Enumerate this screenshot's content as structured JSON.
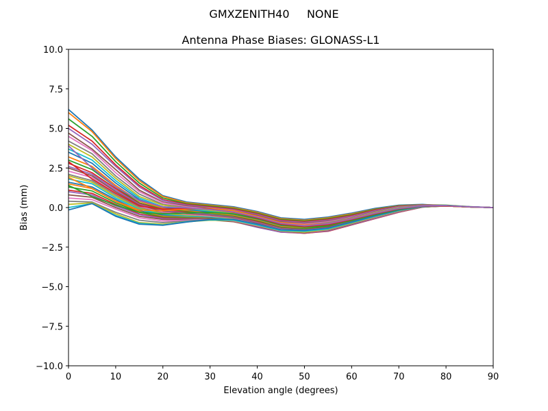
{
  "chart_data": {
    "type": "line",
    "suptitle": "GMXZENITH40     NONE",
    "title": "Antenna Phase Biases: GLONASS-L1",
    "xlabel": "Elevation angle (degrees)",
    "ylabel": "Bias (mm)",
    "xlim": [
      0,
      90
    ],
    "ylim": [
      -10,
      10
    ],
    "x_ticks": [
      0,
      10,
      20,
      30,
      40,
      50,
      60,
      70,
      80,
      90
    ],
    "y_ticks": [
      -10.0,
      -7.5,
      -5.0,
      -2.5,
      0.0,
      2.5,
      5.0,
      7.5,
      10.0
    ],
    "x_tick_labels": [
      "0",
      "10",
      "20",
      "30",
      "40",
      "50",
      "60",
      "70",
      "80",
      "90"
    ],
    "y_tick_labels": [
      "−10.0",
      "−7.5",
      "−5.0",
      "−2.5",
      "0.0",
      "2.5",
      "5.0",
      "7.5",
      "10.0"
    ],
    "grid": false,
    "legend": "none",
    "x": [
      0,
      5,
      10,
      15,
      20,
      25,
      30,
      35,
      40,
      45,
      50,
      55,
      60,
      65,
      70,
      75,
      80,
      85,
      90
    ],
    "series_colors": [
      "#1f77b4",
      "#ff7f0e",
      "#2ca02c",
      "#d62728",
      "#9467bd",
      "#8c564b",
      "#e377c2",
      "#7f7f7f",
      "#bcbd22",
      "#17becf"
    ],
    "series": [
      {
        "values": [
          6.2,
          4.9,
          3.2,
          1.8,
          0.75,
          0.35,
          0.2,
          0.05,
          -0.25,
          -0.65,
          -0.75,
          -0.6,
          -0.35,
          -0.05,
          0.15,
          0.2,
          0.1,
          0.05,
          0.0
        ]
      },
      {
        "values": [
          6.0,
          4.8,
          3.1,
          1.7,
          0.7,
          0.3,
          0.15,
          0.0,
          -0.3,
          -0.7,
          -0.8,
          -0.65,
          -0.4,
          -0.1,
          0.12,
          0.18,
          0.12,
          0.05,
          0.0
        ]
      },
      {
        "values": [
          5.6,
          4.5,
          2.9,
          1.55,
          0.6,
          0.25,
          0.1,
          -0.05,
          -0.35,
          -0.75,
          -0.85,
          -0.7,
          -0.45,
          -0.12,
          0.1,
          0.17,
          0.15,
          0.06,
          0.0
        ]
      },
      {
        "values": [
          5.2,
          4.2,
          2.7,
          1.4,
          0.5,
          0.2,
          0.05,
          -0.1,
          -0.4,
          -0.8,
          -0.9,
          -0.75,
          -0.5,
          -0.15,
          0.08,
          0.16,
          0.13,
          0.05,
          0.0
        ]
      },
      {
        "values": [
          5.0,
          4.0,
          2.6,
          1.3,
          0.45,
          0.15,
          0.0,
          -0.15,
          -0.45,
          -0.85,
          -0.95,
          -0.8,
          -0.55,
          -0.2,
          0.06,
          0.15,
          0.12,
          0.05,
          0.0
        ]
      },
      {
        "values": [
          4.7,
          3.7,
          2.4,
          1.1,
          0.35,
          0.1,
          -0.05,
          -0.2,
          -0.5,
          -0.9,
          -1.0,
          -0.85,
          -0.6,
          -0.25,
          0.04,
          0.14,
          0.11,
          0.04,
          0.0
        ]
      },
      {
        "values": [
          4.5,
          3.6,
          2.2,
          1.0,
          0.3,
          0.05,
          -0.1,
          -0.25,
          -0.55,
          -0.95,
          -1.05,
          -0.9,
          -0.62,
          -0.28,
          0.02,
          0.13,
          0.12,
          0.05,
          0.0
        ]
      },
      {
        "values": [
          4.2,
          3.4,
          2.0,
          0.85,
          0.2,
          0.0,
          -0.15,
          -0.3,
          -0.6,
          -1.0,
          -1.1,
          -0.95,
          -0.65,
          -0.3,
          0.0,
          0.12,
          0.1,
          0.04,
          0.0
        ]
      },
      {
        "values": [
          4.0,
          3.2,
          1.85,
          0.7,
          0.15,
          -0.05,
          -0.2,
          -0.35,
          -0.65,
          -1.05,
          -1.15,
          -1.0,
          -0.7,
          -0.33,
          -0.02,
          0.11,
          0.1,
          0.04,
          0.0
        ]
      },
      {
        "values": [
          3.7,
          3.0,
          1.7,
          0.6,
          0.05,
          -0.1,
          -0.25,
          -0.4,
          -0.7,
          -1.1,
          -1.2,
          -1.05,
          -0.72,
          -0.35,
          -0.04,
          0.1,
          0.12,
          0.05,
          0.0
        ]
      },
      {
        "values": [
          3.5,
          2.8,
          1.55,
          0.5,
          0.0,
          -0.15,
          -0.3,
          -0.45,
          -0.75,
          -1.15,
          -1.25,
          -1.1,
          -0.75,
          -0.38,
          -0.06,
          0.1,
          0.11,
          0.04,
          0.0
        ]
      },
      {
        "values": [
          3.2,
          2.6,
          1.4,
          0.4,
          -0.05,
          -0.2,
          -0.35,
          -0.5,
          -0.8,
          -1.2,
          -1.3,
          -1.15,
          -0.78,
          -0.4,
          -0.08,
          0.09,
          0.1,
          0.04,
          0.0
        ]
      },
      {
        "values": [
          3.0,
          2.4,
          1.3,
          0.3,
          -0.1,
          -0.25,
          -0.4,
          -0.55,
          -0.85,
          -1.25,
          -1.35,
          -1.2,
          -0.82,
          -0.42,
          -0.1,
          0.08,
          0.1,
          0.04,
          0.0
        ]
      },
      {
        "values": [
          2.8,
          2.2,
          1.2,
          0.25,
          -0.15,
          -0.3,
          -0.45,
          -0.6,
          -0.9,
          -1.3,
          -1.4,
          -1.25,
          -0.85,
          -0.45,
          -0.12,
          0.08,
          0.12,
          0.05,
          0.0
        ]
      },
      {
        "values": [
          2.6,
          2.1,
          1.1,
          0.2,
          -0.2,
          -0.35,
          -0.45,
          -0.62,
          -0.95,
          -1.32,
          -1.42,
          -1.28,
          -0.88,
          -0.48,
          -0.14,
          0.07,
          0.11,
          0.04,
          0.0
        ]
      },
      {
        "values": [
          2.5,
          2.0,
          1.0,
          0.15,
          -0.25,
          -0.4,
          -0.5,
          -0.65,
          -1.0,
          -1.35,
          -1.45,
          -1.3,
          -0.9,
          -0.5,
          -0.15,
          0.07,
          0.1,
          0.04,
          0.0
        ]
      },
      {
        "values": [
          2.3,
          1.9,
          0.9,
          0.05,
          -0.3,
          -0.45,
          -0.55,
          -0.7,
          -1.05,
          -1.38,
          -1.48,
          -1.33,
          -0.92,
          -0.52,
          -0.17,
          0.06,
          0.1,
          0.04,
          0.0
        ]
      },
      {
        "values": [
          2.1,
          1.7,
          0.8,
          0.0,
          -0.35,
          -0.5,
          -0.6,
          -0.72,
          -1.08,
          -1.4,
          -1.5,
          -1.35,
          -0.95,
          -0.55,
          -0.18,
          0.06,
          0.12,
          0.05,
          0.0
        ]
      },
      {
        "values": [
          2.0,
          1.6,
          0.7,
          -0.05,
          -0.4,
          -0.5,
          -0.6,
          -0.75,
          -1.1,
          -1.42,
          -1.52,
          -1.38,
          -0.98,
          -0.57,
          -0.2,
          0.05,
          0.11,
          0.04,
          0.0
        ]
      },
      {
        "values": [
          1.8,
          1.5,
          0.6,
          -0.1,
          -0.45,
          -0.55,
          -0.62,
          -0.78,
          -1.12,
          -1.45,
          -1.55,
          -1.4,
          -1.0,
          -0.6,
          -0.22,
          0.05,
          0.1,
          0.04,
          0.0
        ]
      },
      {
        "values": [
          1.6,
          1.3,
          0.5,
          -0.2,
          -0.5,
          -0.6,
          -0.65,
          -0.8,
          -1.15,
          -1.47,
          -1.57,
          -1.42,
          -1.02,
          -0.62,
          -0.24,
          0.04,
          0.12,
          0.05,
          0.0
        ]
      },
      {
        "values": [
          1.5,
          1.2,
          0.4,
          -0.25,
          -0.55,
          -0.62,
          -0.68,
          -0.82,
          -1.17,
          -1.5,
          -1.6,
          -1.45,
          -1.05,
          -0.65,
          -0.25,
          0.04,
          0.11,
          0.04,
          0.0
        ]
      },
      {
        "values": [
          1.3,
          1.05,
          0.3,
          -0.3,
          -0.6,
          -0.65,
          -0.7,
          -0.85,
          -1.2,
          -1.52,
          -1.62,
          -1.47,
          -1.07,
          -0.67,
          -0.27,
          0.03,
          0.1,
          0.04,
          0.0
        ]
      },
      {
        "values": [
          1.1,
          0.9,
          0.2,
          -0.4,
          -0.65,
          -0.7,
          -0.72,
          -0.87,
          -1.22,
          -1.55,
          -1.62,
          -1.5,
          -1.1,
          -0.7,
          -0.3,
          0.03,
          0.12,
          0.05,
          0.0
        ]
      },
      {
        "values": [
          1.0,
          0.8,
          0.1,
          -0.45,
          -0.7,
          -0.72,
          -0.75,
          -0.88,
          -1.25,
          -1.55,
          -1.6,
          -1.48,
          -1.08,
          -0.68,
          -0.28,
          0.04,
          0.11,
          0.04,
          0.0
        ]
      },
      {
        "values": [
          0.8,
          0.65,
          0.0,
          -0.55,
          -0.75,
          -0.75,
          -0.78,
          -0.9,
          -1.2,
          -1.5,
          -1.58,
          -1.45,
          -1.05,
          -0.65,
          -0.26,
          0.04,
          0.1,
          0.04,
          0.0
        ]
      },
      {
        "values": [
          0.6,
          0.5,
          -0.1,
          -0.65,
          -0.85,
          -0.8,
          -0.75,
          -0.85,
          -1.15,
          -1.48,
          -1.55,
          -1.42,
          -1.02,
          -0.62,
          -0.24,
          0.05,
          0.12,
          0.05,
          0.0
        ]
      },
      {
        "values": [
          0.4,
          0.35,
          -0.3,
          -0.8,
          -0.95,
          -0.85,
          -0.75,
          -0.8,
          -1.1,
          -1.45,
          -1.52,
          -1.4,
          -1.0,
          -0.6,
          -0.22,
          0.05,
          0.11,
          0.04,
          0.0
        ]
      },
      {
        "values": [
          0.2,
          0.3,
          -0.4,
          -0.95,
          -1.05,
          -0.9,
          -0.8,
          -0.82,
          -1.12,
          -1.47,
          -1.55,
          -1.38,
          -0.98,
          -0.58,
          -0.2,
          0.06,
          0.1,
          0.04,
          0.0
        ]
      },
      {
        "values": [
          0.0,
          0.25,
          -0.5,
          -1.0,
          -1.1,
          -0.9,
          -0.78,
          -0.8,
          -1.1,
          -1.45,
          -1.5,
          -1.35,
          -0.95,
          -0.55,
          -0.18,
          0.06,
          0.12,
          0.05,
          0.0
        ]
      },
      {
        "values": [
          -0.15,
          0.25,
          -0.55,
          -1.05,
          -1.12,
          -0.92,
          -0.75,
          -0.75,
          -1.05,
          -1.4,
          -1.45,
          -1.3,
          -0.92,
          -0.52,
          -0.16,
          0.07,
          0.11,
          0.04,
          0.0
        ]
      },
      {
        "values": [
          1.9,
          1.2,
          0.4,
          -0.15,
          -0.2,
          -0.1,
          -0.05,
          -0.2,
          -0.55,
          -0.95,
          -1.1,
          -1.0,
          -0.7,
          -0.35,
          -0.05,
          0.1,
          0.1,
          0.04,
          0.0
        ]
      },
      {
        "values": [
          1.4,
          0.7,
          0.15,
          -0.3,
          -0.4,
          -0.35,
          -0.3,
          -0.4,
          -0.7,
          -1.1,
          -1.25,
          -1.15,
          -0.82,
          -0.45,
          -0.12,
          0.08,
          0.11,
          0.04,
          0.0
        ]
      },
      {
        "values": [
          2.9,
          1.8,
          0.9,
          0.1,
          -0.1,
          -0.05,
          -0.1,
          -0.3,
          -0.65,
          -1.05,
          -1.2,
          -1.08,
          -0.76,
          -0.4,
          -0.08,
          0.09,
          0.1,
          0.04,
          0.0
        ]
      },
      {
        "values": [
          3.9,
          2.5,
          1.3,
          0.45,
          0.05,
          -0.02,
          -0.12,
          -0.28,
          -0.6,
          -1.0,
          -1.15,
          -1.02,
          -0.72,
          -0.36,
          -0.06,
          0.1,
          0.12,
          0.05,
          0.0
        ]
      }
    ]
  }
}
